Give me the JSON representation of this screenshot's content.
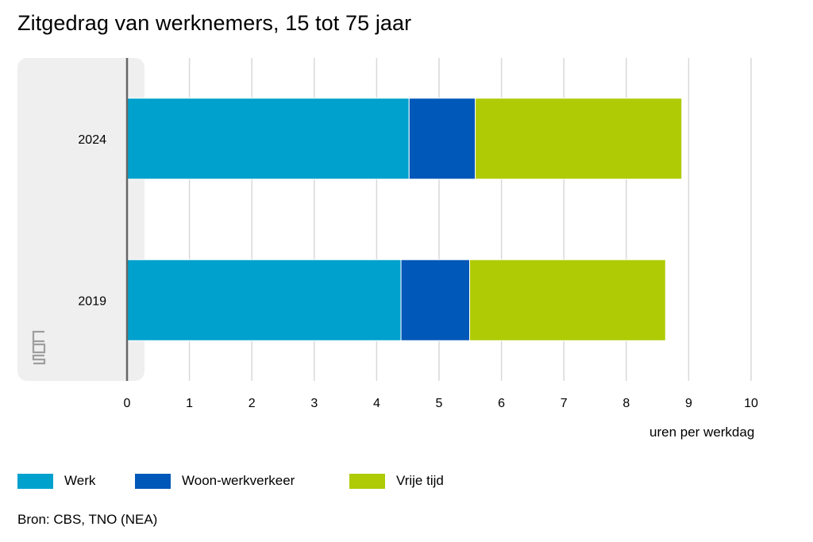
{
  "chart_data": {
    "type": "bar",
    "orientation": "horizontal",
    "stacked": true,
    "title": "Zitgedrag van werknemers, 15 tot 75 jaar",
    "xlabel": "uren per werkdag",
    "ylabel": "",
    "categories": [
      "2024",
      "2019"
    ],
    "series": [
      {
        "name": "Werk",
        "color": "#00a1cd",
        "values": [
          4.52,
          4.39
        ]
      },
      {
        "name": "Woon-werkverkeer",
        "color": "#0058b8",
        "values": [
          1.06,
          1.1
        ]
      },
      {
        "name": "Vrije tijd",
        "color": "#afcb05",
        "values": [
          3.31,
          3.14
        ]
      }
    ],
    "xlim": [
      0,
      10
    ],
    "xticks": [
      "0",
      "1",
      "2",
      "3",
      "4",
      "5",
      "6",
      "7",
      "8",
      "9",
      "10"
    ],
    "grid": true,
    "legend_position": "bottom",
    "source": "Bron: CBS, TNO (NEA)"
  },
  "colors": {
    "gridline": "#d9d9d9",
    "axis": "#666666",
    "label_panel": "#efefef",
    "logo": "#9e9e9e"
  },
  "logo_icon": "cbs-logo-icon"
}
